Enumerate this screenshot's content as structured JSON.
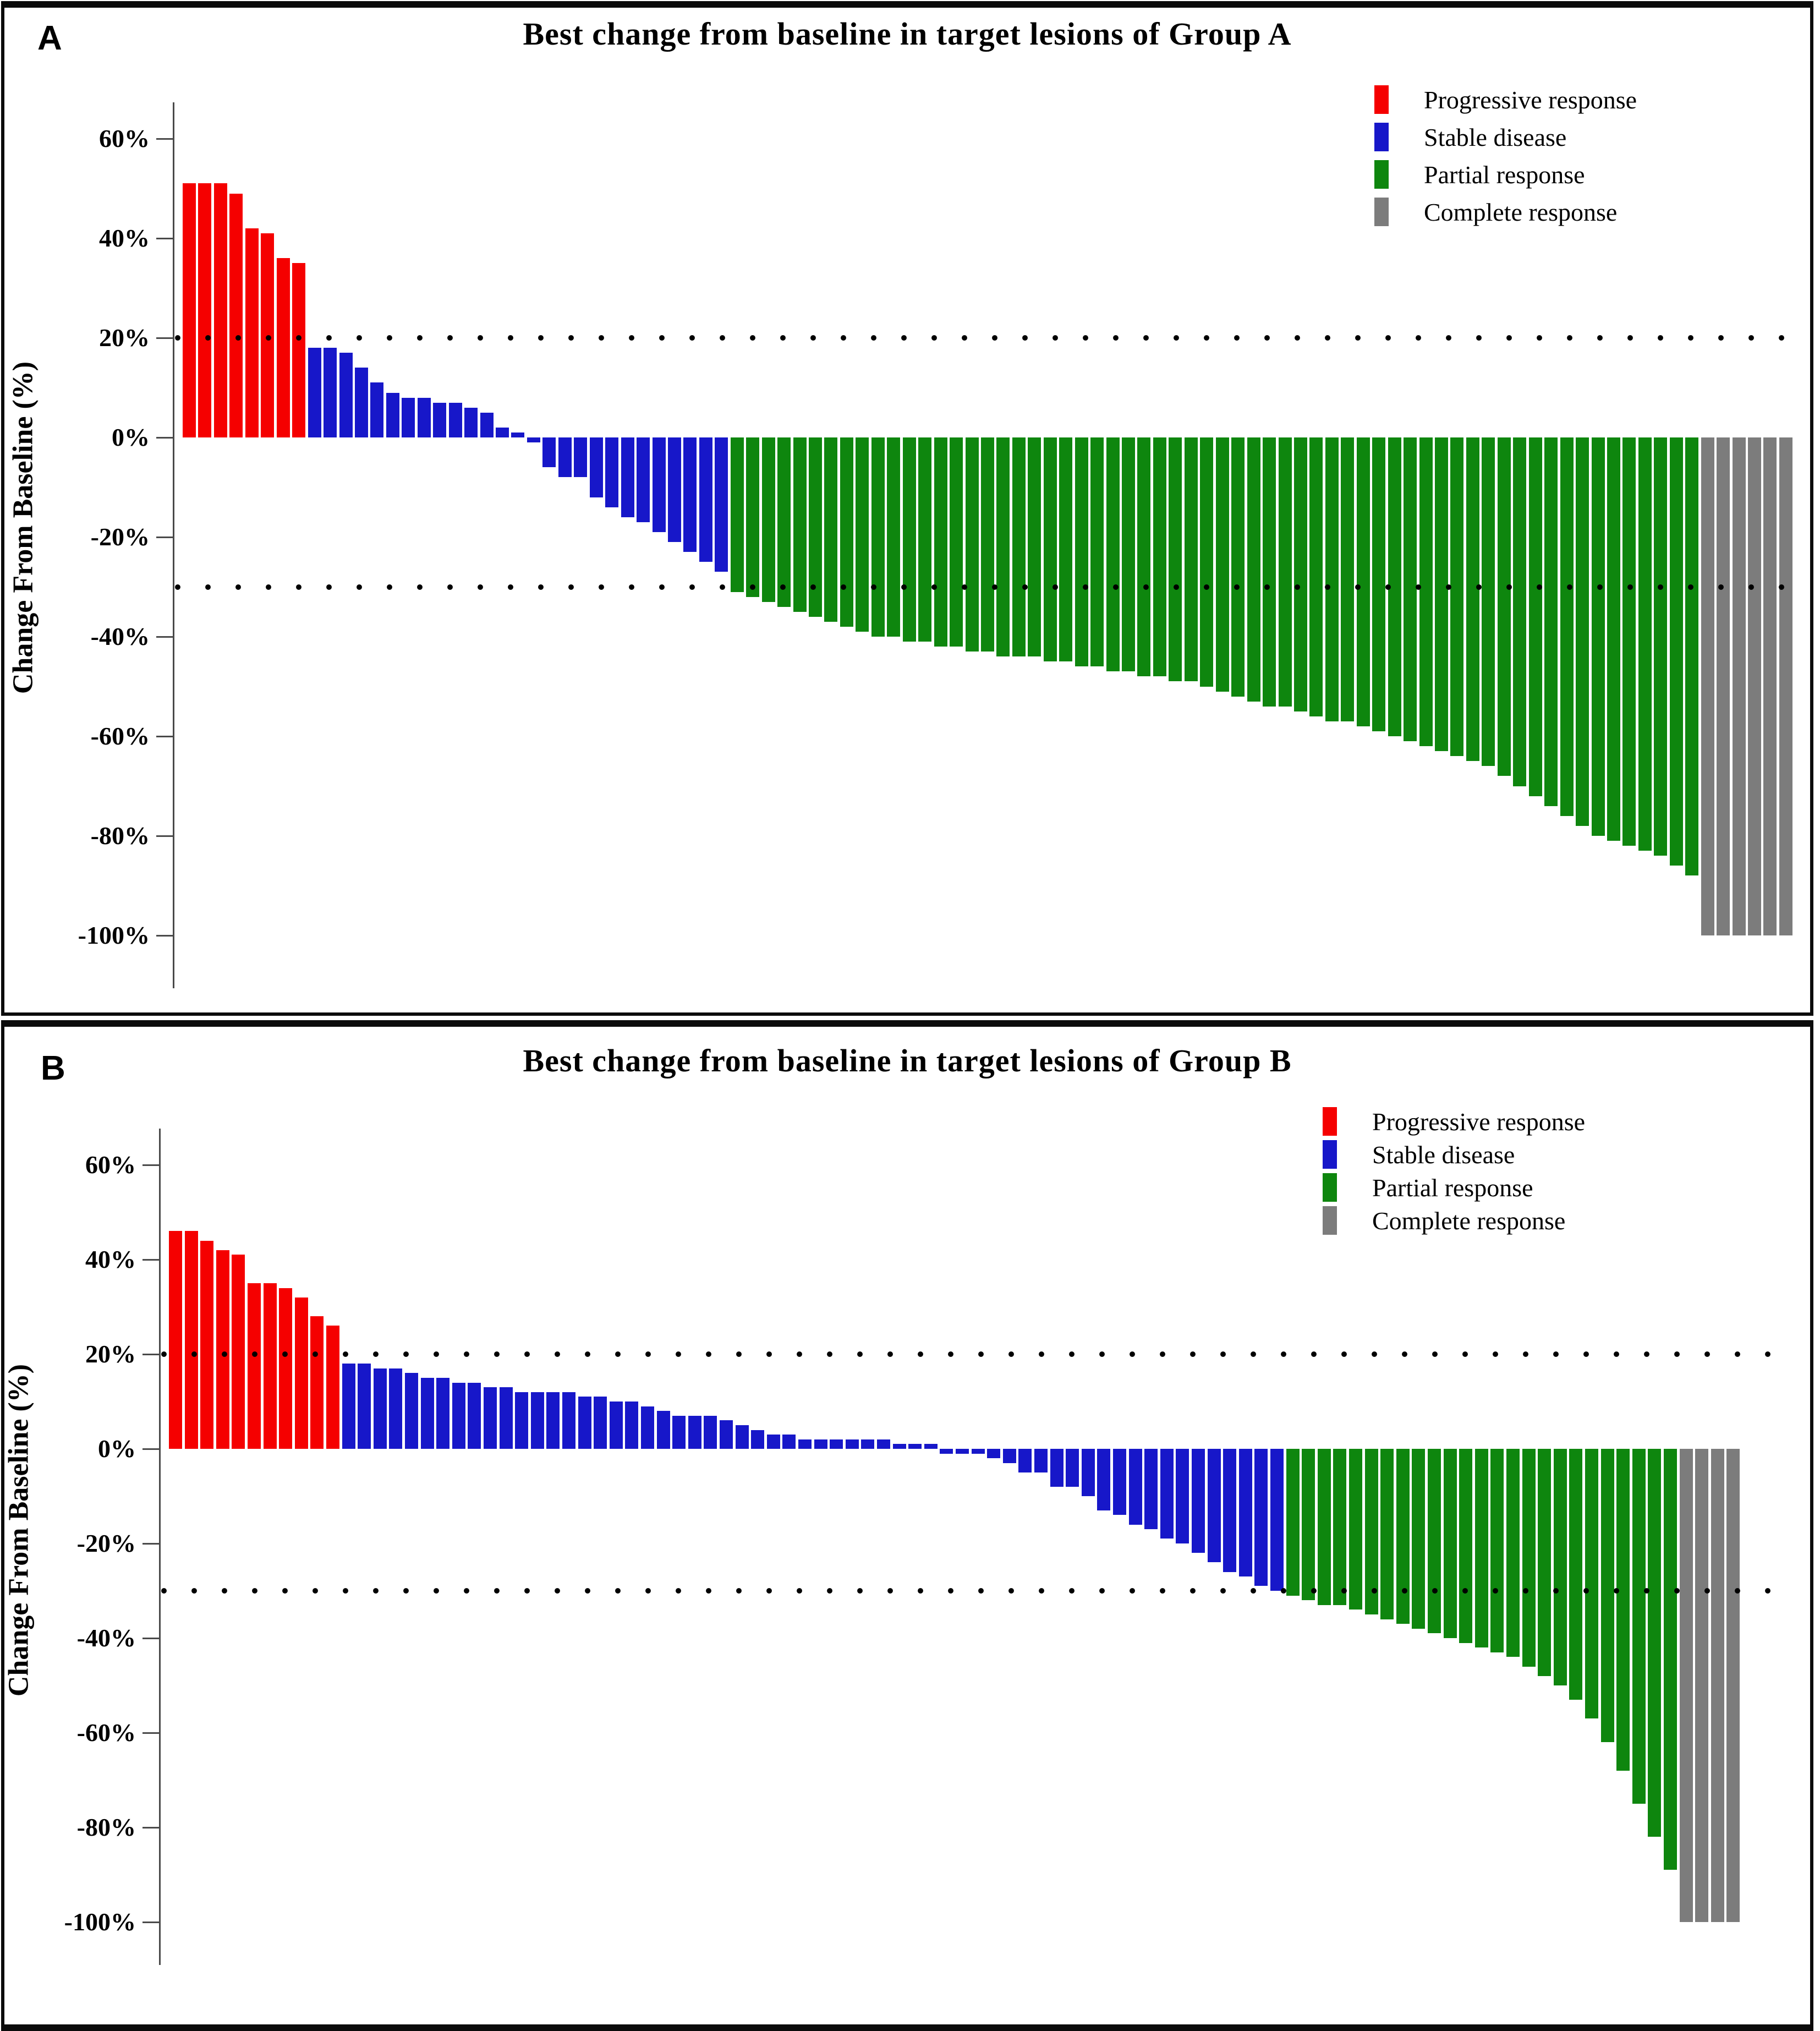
{
  "figure": {
    "panels": [
      {
        "corner_label": "A",
        "title": "Best change from baseline in target lesions of Group A",
        "y_axis_title": "Change From Baseline (%)",
        "legend_labels": [
          "Progressive response",
          "Stable disease",
          "Partial response",
          "Complete response"
        ]
      },
      {
        "corner_label": "B",
        "title": "Best change from baseline in target lesions of Group B",
        "y_axis_title": "Change From Baseline (%)",
        "legend_labels": [
          "Progressive response",
          "Stable disease",
          "Partial response",
          "Complete response"
        ]
      }
    ],
    "colors": {
      "progressive": "#f50000",
      "stable": "#1717c9",
      "partial": "#0e860e",
      "complete": "#7c7c7c",
      "threshold_line": "#000000"
    }
  },
  "chart_data": [
    {
      "type": "bar",
      "subtype": "waterfall",
      "title": "Best change from baseline in target lesions of Group A",
      "xlabel": "",
      "ylabel": "Change From Baseline (%)",
      "ylim": [
        -110,
        70
      ],
      "grid": false,
      "legend_position": "top-right",
      "yticks": [
        {
          "value": 60,
          "label": "60%"
        },
        {
          "value": 40,
          "label": "40%"
        },
        {
          "value": 20,
          "label": "20%"
        },
        {
          "value": 0,
          "label": "0%"
        },
        {
          "value": -20,
          "label": "-20%"
        },
        {
          "value": -40,
          "label": "-40%"
        },
        {
          "value": -60,
          "label": "-60%"
        },
        {
          "value": -80,
          "label": "-80%"
        },
        {
          "value": -100,
          "label": "-100%"
        }
      ],
      "threshold_lines": [
        {
          "value": 20,
          "style": "dotted"
        },
        {
          "value": -30,
          "style": "dotted"
        }
      ],
      "series": [
        {
          "name": "Progressive response",
          "color": "#f50000",
          "values": [
            51,
            51,
            51,
            49,
            42,
            41,
            36,
            35
          ]
        },
        {
          "name": "Stable disease",
          "color": "#1717c9",
          "values": [
            18,
            18,
            17,
            14,
            11,
            9,
            8,
            8,
            7,
            7,
            6,
            5,
            2,
            1,
            -1,
            -6,
            -8,
            -8,
            -12,
            -14,
            -16,
            -17,
            -19,
            -21,
            -23,
            -25,
            -27
          ]
        },
        {
          "name": "Partial response",
          "color": "#0e860e",
          "values": [
            -31,
            -32,
            -33,
            -34,
            -35,
            -36,
            -37,
            -38,
            -39,
            -40,
            -40,
            -41,
            -41,
            -42,
            -42,
            -43,
            -43,
            -44,
            -44,
            -44,
            -45,
            -45,
            -46,
            -46,
            -47,
            -47,
            -48,
            -48,
            -49,
            -49,
            -50,
            -51,
            -52,
            -53,
            -54,
            -54,
            -55,
            -56,
            -57,
            -57,
            -58,
            -59,
            -60,
            -61,
            -62,
            -63,
            -64,
            -65,
            -66,
            -68,
            -70,
            -72,
            -74,
            -76,
            -78,
            -80,
            -81,
            -82,
            -83,
            -84,
            -86,
            -88
          ]
        },
        {
          "name": "Complete response",
          "color": "#7c7c7c",
          "values": [
            -100,
            -100,
            -100,
            -100,
            -100,
            -100
          ]
        }
      ]
    },
    {
      "type": "bar",
      "subtype": "waterfall",
      "title": "Best change from baseline in target lesions of Group B",
      "xlabel": "",
      "ylabel": "Change From Baseline (%)",
      "ylim": [
        -110,
        70
      ],
      "grid": false,
      "legend_position": "top-right",
      "yticks": [
        {
          "value": 60,
          "label": "60%"
        },
        {
          "value": 40,
          "label": "40%"
        },
        {
          "value": 20,
          "label": "20%"
        },
        {
          "value": 0,
          "label": "0%"
        },
        {
          "value": -20,
          "label": "-20%"
        },
        {
          "value": -40,
          "label": "-40%"
        },
        {
          "value": -60,
          "label": "-60%"
        },
        {
          "value": -80,
          "label": "-80%"
        },
        {
          "value": -100,
          "label": "-100%"
        }
      ],
      "threshold_lines": [
        {
          "value": 20,
          "style": "dotted"
        },
        {
          "value": -30,
          "style": "dotted"
        }
      ],
      "series": [
        {
          "name": "Progressive response",
          "color": "#f50000",
          "values": [
            46,
            46,
            44,
            42,
            41,
            35,
            35,
            34,
            32,
            28,
            26
          ]
        },
        {
          "name": "Stable disease",
          "color": "#1717c9",
          "values": [
            18,
            18,
            17,
            17,
            16,
            15,
            15,
            14,
            14,
            13,
            13,
            12,
            12,
            12,
            12,
            11,
            11,
            10,
            10,
            9,
            8,
            7,
            7,
            7,
            6,
            5,
            4,
            3,
            3,
            2,
            2,
            2,
            2,
            2,
            2,
            1,
            1,
            1,
            -1,
            -1,
            -1,
            -2,
            -3,
            -5,
            -5,
            -8,
            -8,
            -10,
            -13,
            -14,
            -16,
            -17,
            -19,
            -20,
            -22,
            -24,
            -26,
            -27,
            -29,
            -30
          ]
        },
        {
          "name": "Partial response",
          "color": "#0e860e",
          "values": [
            -31,
            -32,
            -33,
            -33,
            -34,
            -35,
            -36,
            -37,
            -38,
            -39,
            -40,
            -41,
            -42,
            -43,
            -44,
            -46,
            -48,
            -50,
            -53,
            -57,
            -62,
            -68,
            -75,
            -82,
            -89
          ]
        },
        {
          "name": "Complete response",
          "color": "#7c7c7c",
          "values": [
            -100,
            -100,
            -100,
            -100
          ]
        }
      ]
    }
  ]
}
